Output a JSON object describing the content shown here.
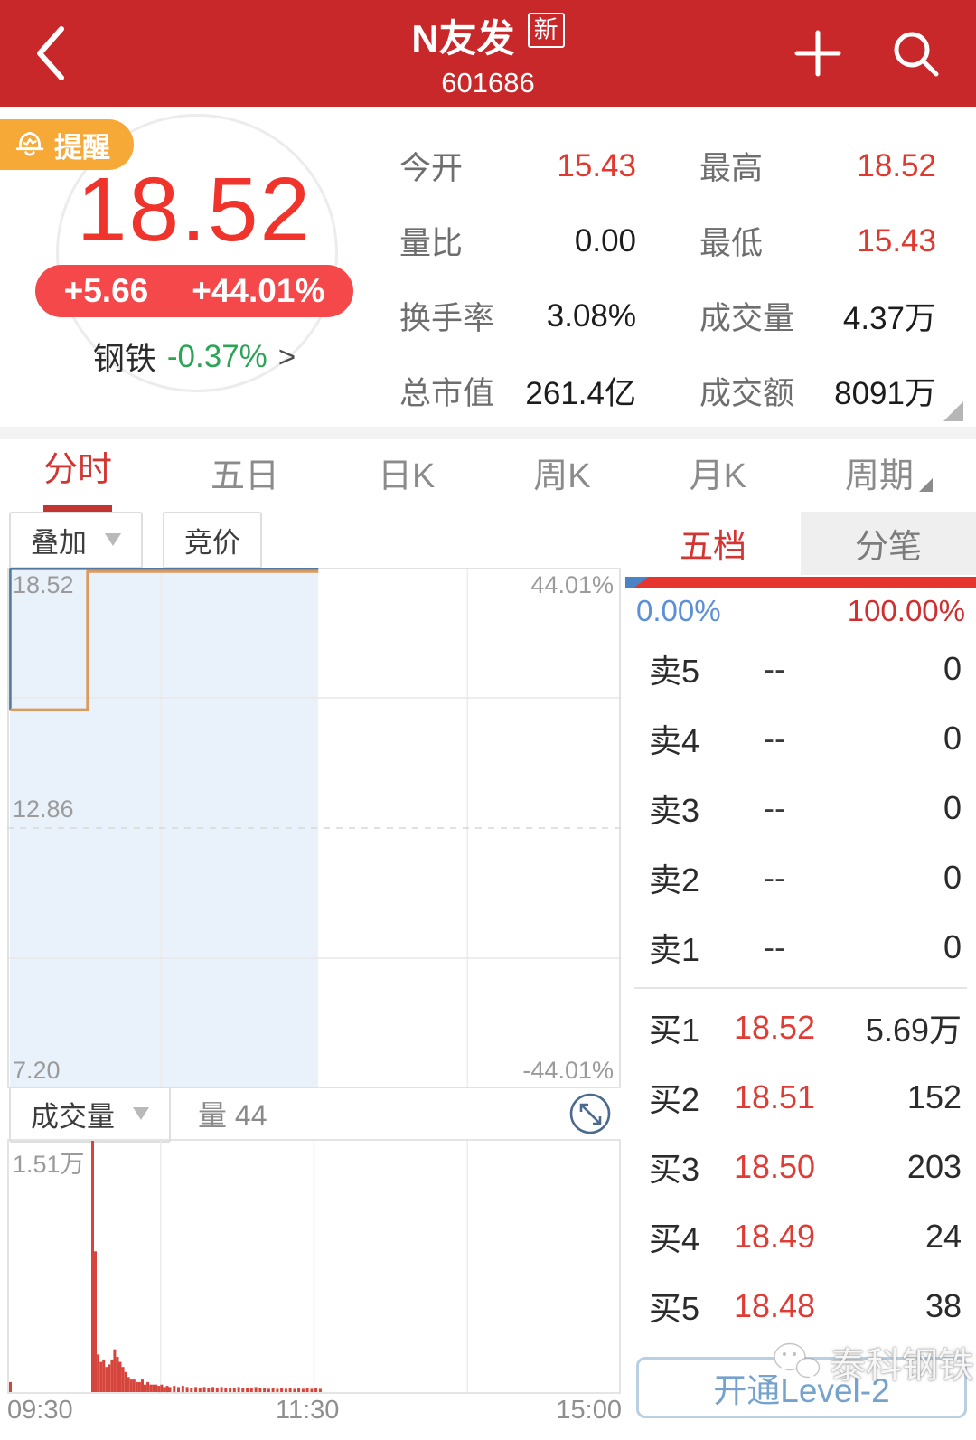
{
  "header": {
    "title": "N友发",
    "new_badge": "新",
    "code": "601686"
  },
  "quote": {
    "alert_label": "提醒",
    "price": "18.52",
    "change": "+5.66",
    "change_pct": "+44.01%",
    "sector": {
      "name": "钢铁",
      "change": "-0.37%",
      "arrow": ">"
    },
    "stats": [
      {
        "label": "今开",
        "value": "15.43",
        "value_class": "sv red"
      },
      {
        "label": "最高",
        "value": "18.52",
        "value_class": "sv red"
      },
      {
        "label": "量比",
        "value": "0.00",
        "value_class": "sv"
      },
      {
        "label": "最低",
        "value": "15.43",
        "value_class": "sv red"
      },
      {
        "label": "换手率",
        "value": "3.08%",
        "value_class": "sv"
      },
      {
        "label": "成交量",
        "value": "4.37万",
        "value_class": "sv"
      },
      {
        "label": "总市值",
        "value": "261.4亿",
        "value_class": "sv"
      },
      {
        "label": "成交额",
        "value": "8091万",
        "value_class": "sv"
      }
    ]
  },
  "period_tabs": [
    {
      "label": "分时"
    },
    {
      "label": "五日"
    },
    {
      "label": "日K"
    },
    {
      "label": "周K"
    },
    {
      "label": "月K"
    },
    {
      "label": "周期"
    }
  ],
  "chart_controls": {
    "overlay": "叠加",
    "auction": "竞价"
  },
  "volume_controls": {
    "selector": "成交量",
    "current": "量 44",
    "max_label": "1.51万"
  },
  "time_axis": {
    "open": "09:30",
    "mid": "11:30",
    "close": "15:00"
  },
  "chart_labels": {
    "top_price": "18.52",
    "top_pct": "44.01%",
    "mid_price": "12.86",
    "bottom_price": "7.20",
    "bottom_pct": "-44.01%"
  },
  "panel": {
    "tabs": [
      {
        "label": "五档"
      },
      {
        "label": "分笔"
      }
    ],
    "sell_pct": "0.00%",
    "buy_pct": "100.00%",
    "sell": [
      {
        "label": "卖5",
        "price": "--",
        "volume": "0"
      },
      {
        "label": "卖4",
        "price": "--",
        "volume": "0"
      },
      {
        "label": "卖3",
        "price": "--",
        "volume": "0"
      },
      {
        "label": "卖2",
        "price": "--",
        "volume": "0"
      },
      {
        "label": "卖1",
        "price": "--",
        "volume": "0"
      }
    ],
    "buy": [
      {
        "label": "买1",
        "price": "18.52",
        "volume": "5.69万"
      },
      {
        "label": "买2",
        "price": "18.51",
        "volume": "152"
      },
      {
        "label": "买3",
        "price": "18.50",
        "volume": "203"
      },
      {
        "label": "买4",
        "price": "18.49",
        "volume": "24"
      },
      {
        "label": "买5",
        "price": "18.48",
        "volume": "38"
      }
    ],
    "level2_label": "开通Level-2"
  },
  "watermark": {
    "text": "泰科钢铁"
  },
  "colors": {
    "header_red": "#c9282a",
    "price_red": "#f0342b",
    "pill_red": "#f5484a",
    "green": "#2ba456",
    "alert_orange": "#f6a937",
    "tab_red": "#d23532",
    "book_price_red": "#e03c36",
    "ratio_blue": "#4a84c4",
    "ratio_red": "#e6352e",
    "fill_blue": "#e9f1fa",
    "price_line": "#54789e",
    "avg_line": "#dc9a5e",
    "volume_red": "#d6453c",
    "level2_blue": "#76a3cd"
  },
  "chart_data": {
    "type": "line",
    "title": "分时 intraday chart, 601686 N友发",
    "x_axis": [
      "09:30",
      "11:30",
      "15:00"
    ],
    "ylim": [
      7.2,
      18.52
    ],
    "ref_price": 12.86,
    "y_left_ticks": [
      18.52,
      12.86,
      7.2
    ],
    "y_right_ticks": [
      "44.01%",
      "-44.01%"
    ],
    "data_end_frac": 0.507,
    "series": [
      {
        "name": "price",
        "points": [
          [
            0.005,
            15.43
          ],
          [
            0.005,
            18.52
          ],
          [
            0.507,
            18.52
          ]
        ]
      },
      {
        "name": "average",
        "points": [
          [
            0.005,
            15.43
          ],
          [
            0.131,
            15.43
          ],
          [
            0.131,
            18.52
          ],
          [
            0.507,
            18.52
          ]
        ]
      }
    ],
    "volume": {
      "max": 15100,
      "max_label": "1.51万",
      "bars": [
        [
          0.0,
          0.04
        ],
        [
          0.134,
          1.0
        ],
        [
          0.1385,
          0.56
        ],
        [
          0.143,
          0.15
        ],
        [
          0.1475,
          0.12
        ],
        [
          0.152,
          0.13
        ],
        [
          0.1565,
          0.1
        ],
        [
          0.161,
          0.11
        ],
        [
          0.1655,
          0.13
        ],
        [
          0.17,
          0.17
        ],
        [
          0.1745,
          0.14
        ],
        [
          0.179,
          0.12
        ],
        [
          0.1835,
          0.1
        ],
        [
          0.188,
          0.08
        ],
        [
          0.1925,
          0.06
        ],
        [
          0.197,
          0.05
        ],
        [
          0.2015,
          0.05
        ],
        [
          0.206,
          0.04
        ],
        [
          0.2105,
          0.04
        ],
        [
          0.215,
          0.05
        ],
        [
          0.2195,
          0.03
        ],
        [
          0.224,
          0.04
        ],
        [
          0.2285,
          0.03
        ],
        [
          0.233,
          0.03
        ],
        [
          0.2375,
          0.03
        ],
        [
          0.242,
          0.025
        ],
        [
          0.2465,
          0.03
        ],
        [
          0.251,
          0.02
        ],
        [
          0.2555,
          0.025
        ],
        [
          0.26,
          0.02
        ],
        [
          0.267,
          0.025
        ],
        [
          0.274,
          0.02
        ],
        [
          0.281,
          0.025
        ],
        [
          0.288,
          0.02
        ],
        [
          0.295,
          0.015
        ],
        [
          0.302,
          0.02
        ],
        [
          0.309,
          0.015
        ],
        [
          0.316,
          0.02
        ],
        [
          0.323,
          0.015
        ],
        [
          0.33,
          0.02
        ],
        [
          0.337,
          0.015
        ],
        [
          0.344,
          0.02
        ],
        [
          0.351,
          0.015
        ],
        [
          0.358,
          0.018
        ],
        [
          0.365,
          0.015
        ],
        [
          0.372,
          0.02
        ],
        [
          0.379,
          0.015
        ],
        [
          0.386,
          0.018
        ],
        [
          0.393,
          0.015
        ],
        [
          0.4,
          0.02
        ],
        [
          0.407,
          0.015
        ],
        [
          0.414,
          0.018
        ],
        [
          0.421,
          0.013
        ],
        [
          0.428,
          0.018
        ],
        [
          0.435,
          0.013
        ],
        [
          0.442,
          0.016
        ],
        [
          0.449,
          0.013
        ],
        [
          0.456,
          0.018
        ],
        [
          0.463,
          0.013
        ],
        [
          0.47,
          0.016
        ],
        [
          0.477,
          0.013
        ],
        [
          0.484,
          0.016
        ],
        [
          0.491,
          0.013
        ],
        [
          0.498,
          0.016
        ],
        [
          0.505,
          0.013
        ]
      ]
    }
  }
}
